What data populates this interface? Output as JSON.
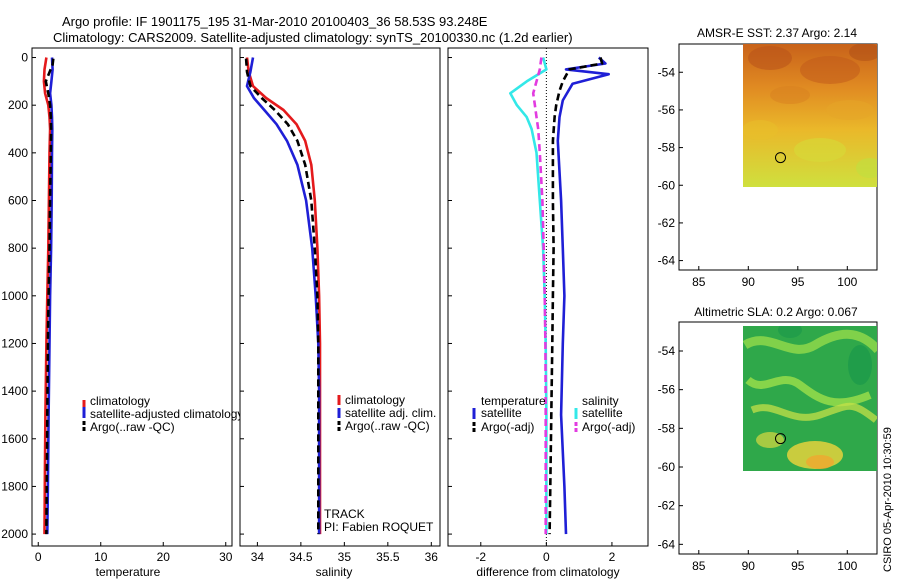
{
  "header": {
    "title_line1": "Argo profile: IF 1901175_195 31-Mar-2010 20100403_36 58.53S 93.248E",
    "title_line2": "Climatology: CARS2009. Satellite-adjusted climatology: synTS_20100330.nc (1.2d earlier)"
  },
  "colors": {
    "red": "#e41a1c",
    "blue": "#1f1fd6",
    "black": "#000000",
    "cyan": "#33e8e8",
    "magenta": "#e23be0"
  },
  "chart_data": [
    {
      "type": "line",
      "name": "temperature-profile",
      "xlabel": "temperature",
      "ylabel": "",
      "xlim": [
        -1,
        31
      ],
      "ylim": [
        2050,
        -40
      ],
      "xticks": [
        "0",
        "10",
        "20",
        "30"
      ],
      "yticks": [
        "0",
        "200",
        "400",
        "600",
        "800",
        "1000",
        "1200",
        "1400",
        "1600",
        "1800",
        "2000"
      ],
      "legend": {
        "position": "lower-middle",
        "entries": [
          "climatology",
          "satellite-adjusted climatology",
          "Argo(..raw -QC)"
        ]
      },
      "series": [
        {
          "name": "climatology",
          "color": "red",
          "dash": "",
          "x": [
            1.3,
            1.0,
            0.9,
            1.1,
            1.6,
            1.8,
            1.9,
            1.8,
            1.7,
            1.6,
            1.45,
            1.3,
            1.15,
            1.05,
            1.0
          ],
          "y": [
            0,
            50,
            100,
            150,
            200,
            250,
            300,
            400,
            600,
            800,
            1000,
            1200,
            1500,
            1800,
            2000
          ]
        },
        {
          "name": "satellite-adjusted climatology",
          "color": "blue",
          "dash": "",
          "x": [
            2.2,
            2.3,
            2.1,
            1.9,
            2.1,
            2.2,
            2.25,
            2.2,
            2.15,
            2.05,
            1.9,
            1.8,
            1.65,
            1.55,
            1.45
          ],
          "y": [
            0,
            50,
            100,
            150,
            200,
            250,
            300,
            400,
            600,
            800,
            1000,
            1200,
            1500,
            1800,
            2000
          ]
        },
        {
          "name": "Argo(..raw -QC)",
          "color": "black",
          "dash": "7,4",
          "x": [
            2.4,
            2.3,
            1.2,
            1.6,
            1.9,
            2.0,
            2.05,
            2.0,
            1.9,
            1.8,
            1.65,
            1.55,
            1.45,
            1.35,
            1.3
          ],
          "y": [
            5,
            30,
            100,
            150,
            200,
            250,
            300,
            400,
            600,
            800,
            1000,
            1200,
            1500,
            1800,
            2000
          ]
        }
      ]
    },
    {
      "type": "line",
      "name": "salinity-profile",
      "xlabel": "salinity",
      "xlim": [
        33.8,
        36.1
      ],
      "ylim": [
        2050,
        -40
      ],
      "xticks": [
        "34",
        "34.5",
        "35",
        "35.5",
        "36"
      ],
      "legend": {
        "position": "lower-right",
        "entries": [
          "climatology",
          "satellite adj. clim.",
          "Argo(..raw -QC)"
        ]
      },
      "annotations": [
        "TRACK",
        "PI: Fabien ROQUET"
      ],
      "series": [
        {
          "name": "climatology",
          "color": "red",
          "dash": "",
          "x": [
            33.88,
            33.9,
            33.95,
            34.1,
            34.3,
            34.45,
            34.55,
            34.62,
            34.66,
            34.69,
            34.71,
            34.72,
            34.72,
            34.72,
            34.72,
            34.72
          ],
          "y": [
            0,
            60,
            120,
            170,
            220,
            280,
            350,
            450,
            600,
            800,
            1000,
            1200,
            1400,
            1600,
            1800,
            2000
          ]
        },
        {
          "name": "satellite adj. clim.",
          "color": "blue",
          "dash": "",
          "x": [
            33.95,
            33.92,
            33.88,
            33.96,
            34.08,
            34.22,
            34.34,
            34.46,
            34.56,
            34.63,
            34.67,
            34.7,
            34.71,
            34.71,
            34.71,
            34.71
          ],
          "y": [
            0,
            60,
            120,
            170,
            220,
            280,
            350,
            450,
            600,
            800,
            1000,
            1200,
            1400,
            1600,
            1800,
            2000
          ]
        },
        {
          "name": "Argo(..raw -QC)",
          "color": "black",
          "dash": "7,4",
          "x": [
            33.87,
            33.88,
            33.92,
            34.05,
            34.2,
            34.35,
            34.46,
            34.55,
            34.62,
            34.66,
            34.69,
            34.7,
            34.7,
            34.7,
            34.7,
            34.7
          ],
          "y": [
            5,
            60,
            120,
            170,
            220,
            280,
            350,
            450,
            600,
            800,
            1000,
            1200,
            1400,
            1600,
            1800,
            2000
          ]
        }
      ]
    },
    {
      "type": "line",
      "name": "difference-profile",
      "xlabel": "difference from climatology",
      "xlim": [
        -3,
        3.1
      ],
      "ylim": [
        2050,
        -40
      ],
      "xticks": [
        "-2",
        "0",
        "2"
      ],
      "legend": {
        "position": "lower-middle",
        "groups": [
          {
            "title": "temperature",
            "entries": [
              "satellite",
              "Argo(-adj)"
            ]
          },
          {
            "title": "salinity",
            "entries": [
              "satellite",
              "Argo(-adj)"
            ]
          }
        ]
      },
      "series": [
        {
          "name": "temperature satellite",
          "color": "blue",
          "dash": "",
          "x": [
            1.6,
            1.8,
            0.6,
            1.9,
            0.8,
            0.5,
            0.4,
            0.35,
            0.45,
            0.5,
            0.55,
            0.5,
            0.45,
            0.55,
            0.6
          ],
          "y": [
            0,
            25,
            50,
            70,
            110,
            180,
            250,
            350,
            600,
            800,
            1000,
            1200,
            1500,
            1800,
            2000
          ]
        },
        {
          "name": "temperature Argo(-adj)",
          "color": "black",
          "dash": "7,4",
          "x": [
            1.65,
            1.7,
            0.7,
            0.5,
            0.4,
            0.3,
            0.25,
            0.2,
            0.2,
            0.22,
            0.2,
            0.18,
            0.15,
            0.12,
            0.1
          ],
          "y": [
            0,
            25,
            50,
            100,
            140,
            200,
            250,
            350,
            600,
            800,
            1000,
            1200,
            1500,
            1800,
            2000
          ]
        },
        {
          "name": "salinity satellite",
          "color": "cyan",
          "dash": "",
          "x": [
            -0.1,
            0.0,
            -0.6,
            -1.1,
            -0.9,
            -0.6,
            -0.45,
            -0.3,
            -0.2,
            -0.1,
            -0.05,
            -0.02,
            0.0,
            0.0,
            0.0
          ],
          "y": [
            0,
            50,
            100,
            150,
            200,
            250,
            300,
            400,
            600,
            800,
            1000,
            1200,
            1500,
            1800,
            2000
          ]
        },
        {
          "name": "salinity Argo(-adj)",
          "color": "magenta",
          "dash": "7,4",
          "x": [
            -0.15,
            -0.2,
            -0.3,
            -0.4,
            -0.35,
            -0.3,
            -0.25,
            -0.2,
            -0.12,
            -0.08,
            -0.05,
            -0.03,
            -0.02,
            -0.02,
            -0.02
          ],
          "y": [
            0,
            50,
            100,
            150,
            200,
            250,
            300,
            400,
            600,
            800,
            1000,
            1200,
            1500,
            1800,
            2000
          ]
        }
      ]
    },
    {
      "type": "heatmap",
      "name": "amsr-sst-map",
      "title": "AMSR-E SST: 2.37 Argo: 2.14",
      "xlim": [
        83,
        103
      ],
      "ylim": [
        -64.5,
        -52.5
      ],
      "xticks": [
        "85",
        "90",
        "95",
        "100"
      ],
      "yticks": [
        "-54",
        "-56",
        "-58",
        "-60",
        "-62",
        "-64"
      ],
      "data_extent": {
        "lon": [
          90,
          103
        ],
        "lat": [
          -60.2,
          -52.5
        ]
      },
      "colormap": [
        "#c85a12",
        "#e07a1a",
        "#f0a020",
        "#e8c42a",
        "#c8e040"
      ],
      "marker": {
        "lon": 93.25,
        "lat": -58.53
      }
    },
    {
      "type": "heatmap",
      "name": "altimetric-sla-map",
      "title": "Altimetric SLA: 0.2 Argo: 0.067",
      "xlim": [
        83,
        103
      ],
      "ylim": [
        -64.5,
        -52.5
      ],
      "xticks": [
        "85",
        "90",
        "95",
        "100"
      ],
      "yticks": [
        "-54",
        "-56",
        "-58",
        "-60",
        "-62",
        "-64"
      ],
      "data_extent": {
        "lon": [
          90,
          103
        ],
        "lat": [
          -60.2,
          -52.5
        ]
      },
      "colormap": [
        "#1d9a4a",
        "#3cb44a",
        "#8ed84a",
        "#d8e040",
        "#f0a830"
      ],
      "marker": {
        "lon": 93.25,
        "lat": -58.53
      }
    }
  ],
  "footer": {
    "credit": "CSIRO 05-Apr-2010 10:30:59"
  }
}
